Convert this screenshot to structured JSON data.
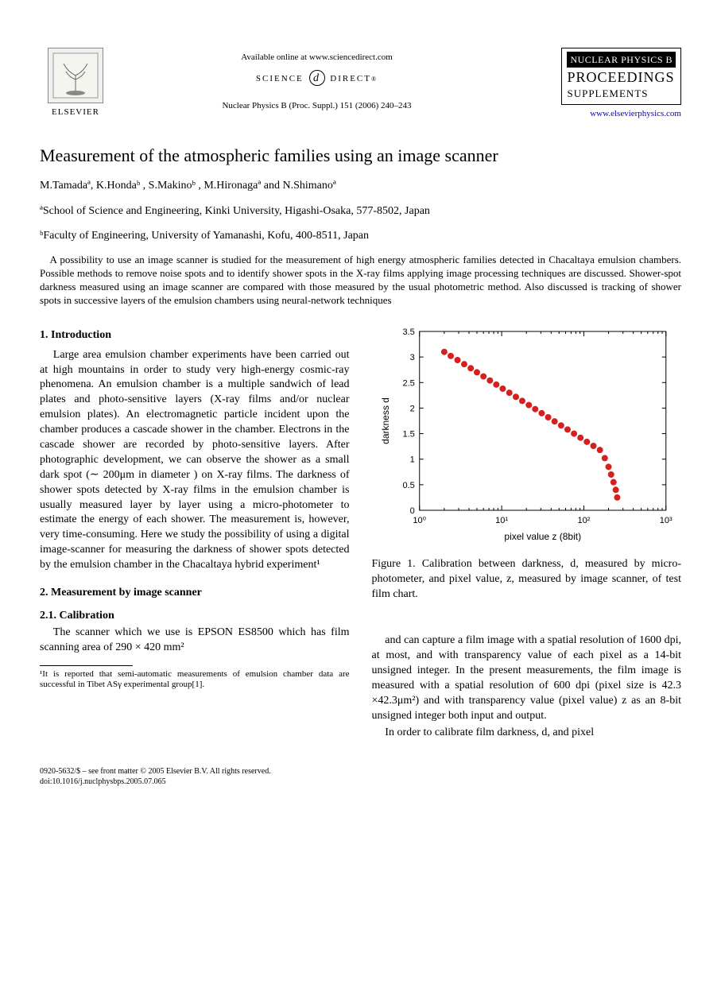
{
  "header": {
    "available_online": "Available online at www.sciencedirect.com",
    "science_direct": "SCIENCE DIRECT®",
    "elsevier_label": "ELSEVIER",
    "journal_ref": "Nuclear Physics B (Proc. Suppl.) 151 (2006) 240–243",
    "npb_title": "NUCLEAR PHYSICS B",
    "npb_sub1": "PROCEEDINGS",
    "npb_sub2": "SUPPLEMENTS",
    "elsevier_link": "www.elsevierphysics.com"
  },
  "title": "Measurement of the atmospheric families using an image scanner",
  "authors_html": "M.Tamadaª, K.Hondaᵇ , S.Makinoᵇ , M.Hironagaª and N.Shimanoª",
  "affiliations": {
    "a": "ªSchool of Science and Engineering, Kinki University, Higashi-Osaka, 577-8502, Japan",
    "b": "ᵇFaculty of Engineering, University of Yamanashi, Kofu, 400-8511, Japan"
  },
  "abstract": "A possibility to use an image scanner is studied for the measurement of high energy atmospheric families detected in Chacaltaya emulsion chambers. Possible methods to remove noise spots and to identify shower spots in the X-ray films applying image processing techniques are discussed. Shower-spot darkness measured using an image scanner are compared with those measured by the usual photometric method. Also discussed is tracking of shower spots in successive layers of the emulsion chambers using neural-network techniques",
  "sections": {
    "s1_head": "1. Introduction",
    "s1_body": "Large area emulsion chamber experiments have been carried out at high mountains in order to study very high-energy cosmic-ray phenomena. An emulsion chamber is a multiple sandwich of lead plates and photo-sensitive layers (X-ray films and/or nuclear emulsion plates). An electromagnetic particle incident upon the chamber produces a cascade shower in the chamber. Electrons in the cascade shower are recorded by photo-sensitive layers. After photographic development, we can observe the shower as a small dark spot (∼ 200μm in diameter ) on X-ray films. The darkness of shower spots detected by X-ray films in the emulsion chamber is usually measured layer by layer using a micro-photometer to estimate the energy of each shower. The measurement is, however, very time-consuming. Here we study the possibility of using a digital image-scanner for measuring the darkness of shower spots detected by the emulsion chamber in the Chacaltaya hybrid experiment¹",
    "s2_head": "2. Measurement by image scanner",
    "s21_head": "2.1. Calibration",
    "s21_body": "The scanner which we use is EPSON ES8500 which has film scanning area of 290 × 420 mm²",
    "col2_p1": "and can capture a film image with a spatial resolution of 1600 dpi, at most, and with transparency value of each pixel as a 14-bit unsigned integer. In the present measurements, the film image is measured with a spatial resolution of 600 dpi (pixel size is 42.3 ×42.3μm²) and with transparency value (pixel value) z as an 8-bit unsigned integer both input and output.",
    "col2_p2": "In order to calibrate film darkness, d, and pixel"
  },
  "footnote": "¹It is reported that semi-automatic measurements of emulsion chamber data are successful in Tibet ASγ experimental group[1].",
  "figure1": {
    "caption": "Figure 1. Calibration between darkness, d, measured by micro-photometer, and pixel value, z, measured by image scanner, of test film chart.",
    "type": "scatter",
    "xlabel": "pixel value  z   (8bit)",
    "ylabel": "darkness  d",
    "xscale": "log",
    "xlim": [
      1,
      1000
    ],
    "ylim": [
      0,
      3.5
    ],
    "xticks": [
      1,
      10,
      100,
      1000
    ],
    "xtick_labels": [
      "10⁰",
      "10¹",
      "10²",
      "10³"
    ],
    "yticks": [
      0,
      0.5,
      1,
      1.5,
      2,
      2.5,
      3,
      3.5
    ],
    "marker_color": "#d62020",
    "marker_size": 4,
    "background_color": "#ffffff",
    "axis_color": "#000000",
    "data_points": [
      {
        "x": 2.0,
        "y": 3.1
      },
      {
        "x": 2.4,
        "y": 3.02
      },
      {
        "x": 2.9,
        "y": 2.94
      },
      {
        "x": 3.5,
        "y": 2.86
      },
      {
        "x": 4.2,
        "y": 2.78
      },
      {
        "x": 5.0,
        "y": 2.7
      },
      {
        "x": 6.0,
        "y": 2.62
      },
      {
        "x": 7.2,
        "y": 2.54
      },
      {
        "x": 8.6,
        "y": 2.46
      },
      {
        "x": 10.3,
        "y": 2.38
      },
      {
        "x": 12.4,
        "y": 2.3
      },
      {
        "x": 14.9,
        "y": 2.22
      },
      {
        "x": 17.8,
        "y": 2.14
      },
      {
        "x": 21.4,
        "y": 2.06
      },
      {
        "x": 25.6,
        "y": 1.98
      },
      {
        "x": 30.7,
        "y": 1.9
      },
      {
        "x": 36.8,
        "y": 1.82
      },
      {
        "x": 44.1,
        "y": 1.74
      },
      {
        "x": 52.9,
        "y": 1.66
      },
      {
        "x": 63.4,
        "y": 1.58
      },
      {
        "x": 76.0,
        "y": 1.5
      },
      {
        "x": 91.1,
        "y": 1.42
      },
      {
        "x": 109,
        "y": 1.34
      },
      {
        "x": 131,
        "y": 1.26
      },
      {
        "x": 157,
        "y": 1.18
      },
      {
        "x": 180,
        "y": 1.02
      },
      {
        "x": 200,
        "y": 0.85
      },
      {
        "x": 215,
        "y": 0.7
      },
      {
        "x": 230,
        "y": 0.55
      },
      {
        "x": 245,
        "y": 0.4
      },
      {
        "x": 255,
        "y": 0.25
      }
    ]
  },
  "bottom": {
    "copyright": "0920-5632/$ – see front matter © 2005 Elsevier B.V. All rights reserved.",
    "doi": "doi:10.1016/j.nuclphysbps.2005.07.065"
  }
}
